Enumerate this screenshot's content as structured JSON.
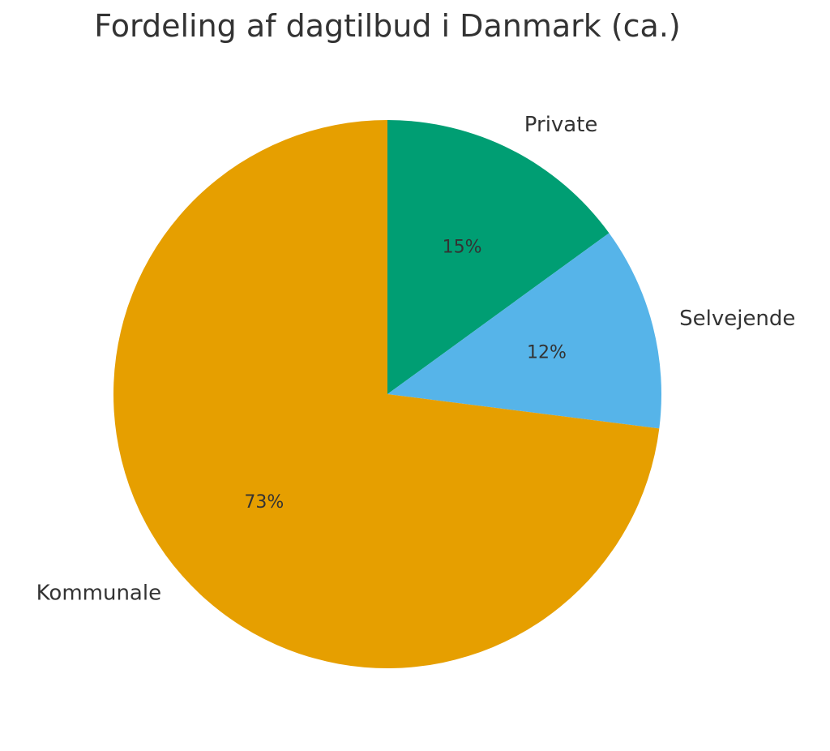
{
  "chart_data": {
    "type": "pie",
    "title": "Fordeling af dagtilbud i Danmark (ca.)",
    "start_angle_deg": 90,
    "direction": "clockwise",
    "slices": [
      {
        "label": "Private",
        "value": 15,
        "pct_label": "15%",
        "color": "#009E73"
      },
      {
        "label": "Selvejende",
        "value": 12,
        "pct_label": "12%",
        "color": "#56B4E9"
      },
      {
        "label": "Kommunale",
        "value": 73,
        "pct_label": "73%",
        "color": "#E69F00"
      }
    ]
  }
}
